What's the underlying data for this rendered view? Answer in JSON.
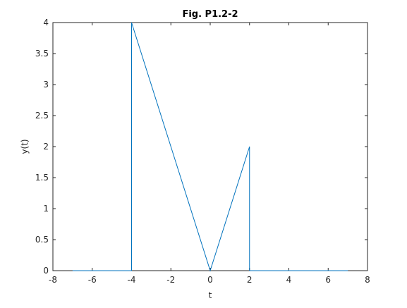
{
  "chart_data": {
    "type": "line",
    "title": "Fig. P1.2-2",
    "xlabel": "t",
    "ylabel": "y(t)",
    "xlim": [
      -8,
      8
    ],
    "ylim": [
      0,
      4
    ],
    "x_ticks": [
      "-8",
      "-6",
      "-4",
      "-2",
      "0",
      "2",
      "4",
      "6",
      "8"
    ],
    "y_ticks": [
      "0",
      "0.5",
      "1",
      "1.5",
      "2",
      "2.5",
      "3",
      "3.5",
      "4"
    ],
    "grid": false,
    "series": [
      {
        "color": "#0072bd",
        "x": [
          -7,
          -4,
          -4,
          0,
          2,
          2,
          7
        ],
        "y": [
          0,
          0,
          4,
          0,
          2,
          0,
          0
        ]
      }
    ]
  }
}
